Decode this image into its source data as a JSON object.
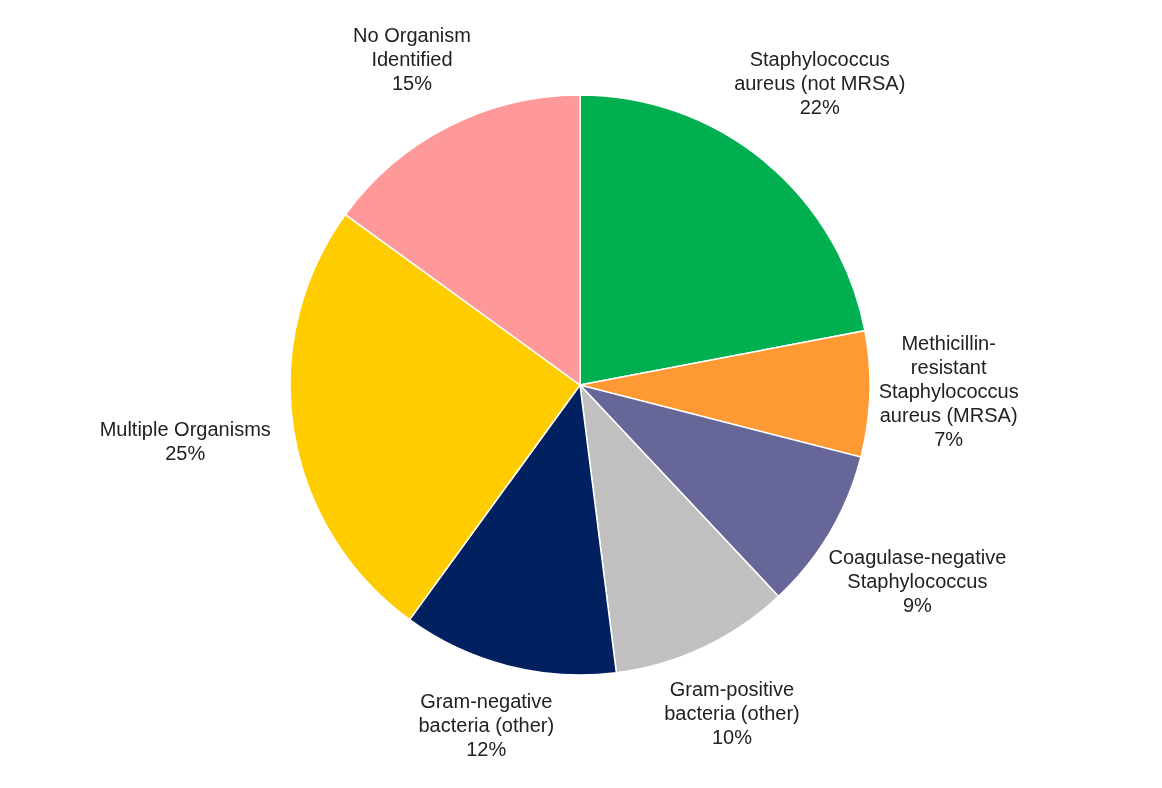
{
  "chart_data": {
    "type": "pie",
    "categories": [
      "Staphylococcus aureus (not MRSA)",
      "Methicillin-resistant Staphylococcus aureus (MRSA)",
      "Coagulase-negative Staphylococcus",
      "Gram-positive bacteria (other)",
      "Gram-negative bacteria (other)",
      "Multiple Organisms",
      "No Organism Identified"
    ],
    "values": [
      22,
      7,
      9,
      10,
      12,
      25,
      15
    ],
    "value_labels": [
      "22%",
      "7%",
      "9%",
      "10%",
      "12%",
      "25%",
      "15%"
    ],
    "colors": [
      "#00b050",
      "#ff9933",
      "#666699",
      "#c0c0c0",
      "#002060",
      "#ffcc00",
      "#ff9999"
    ],
    "legend": false
  }
}
